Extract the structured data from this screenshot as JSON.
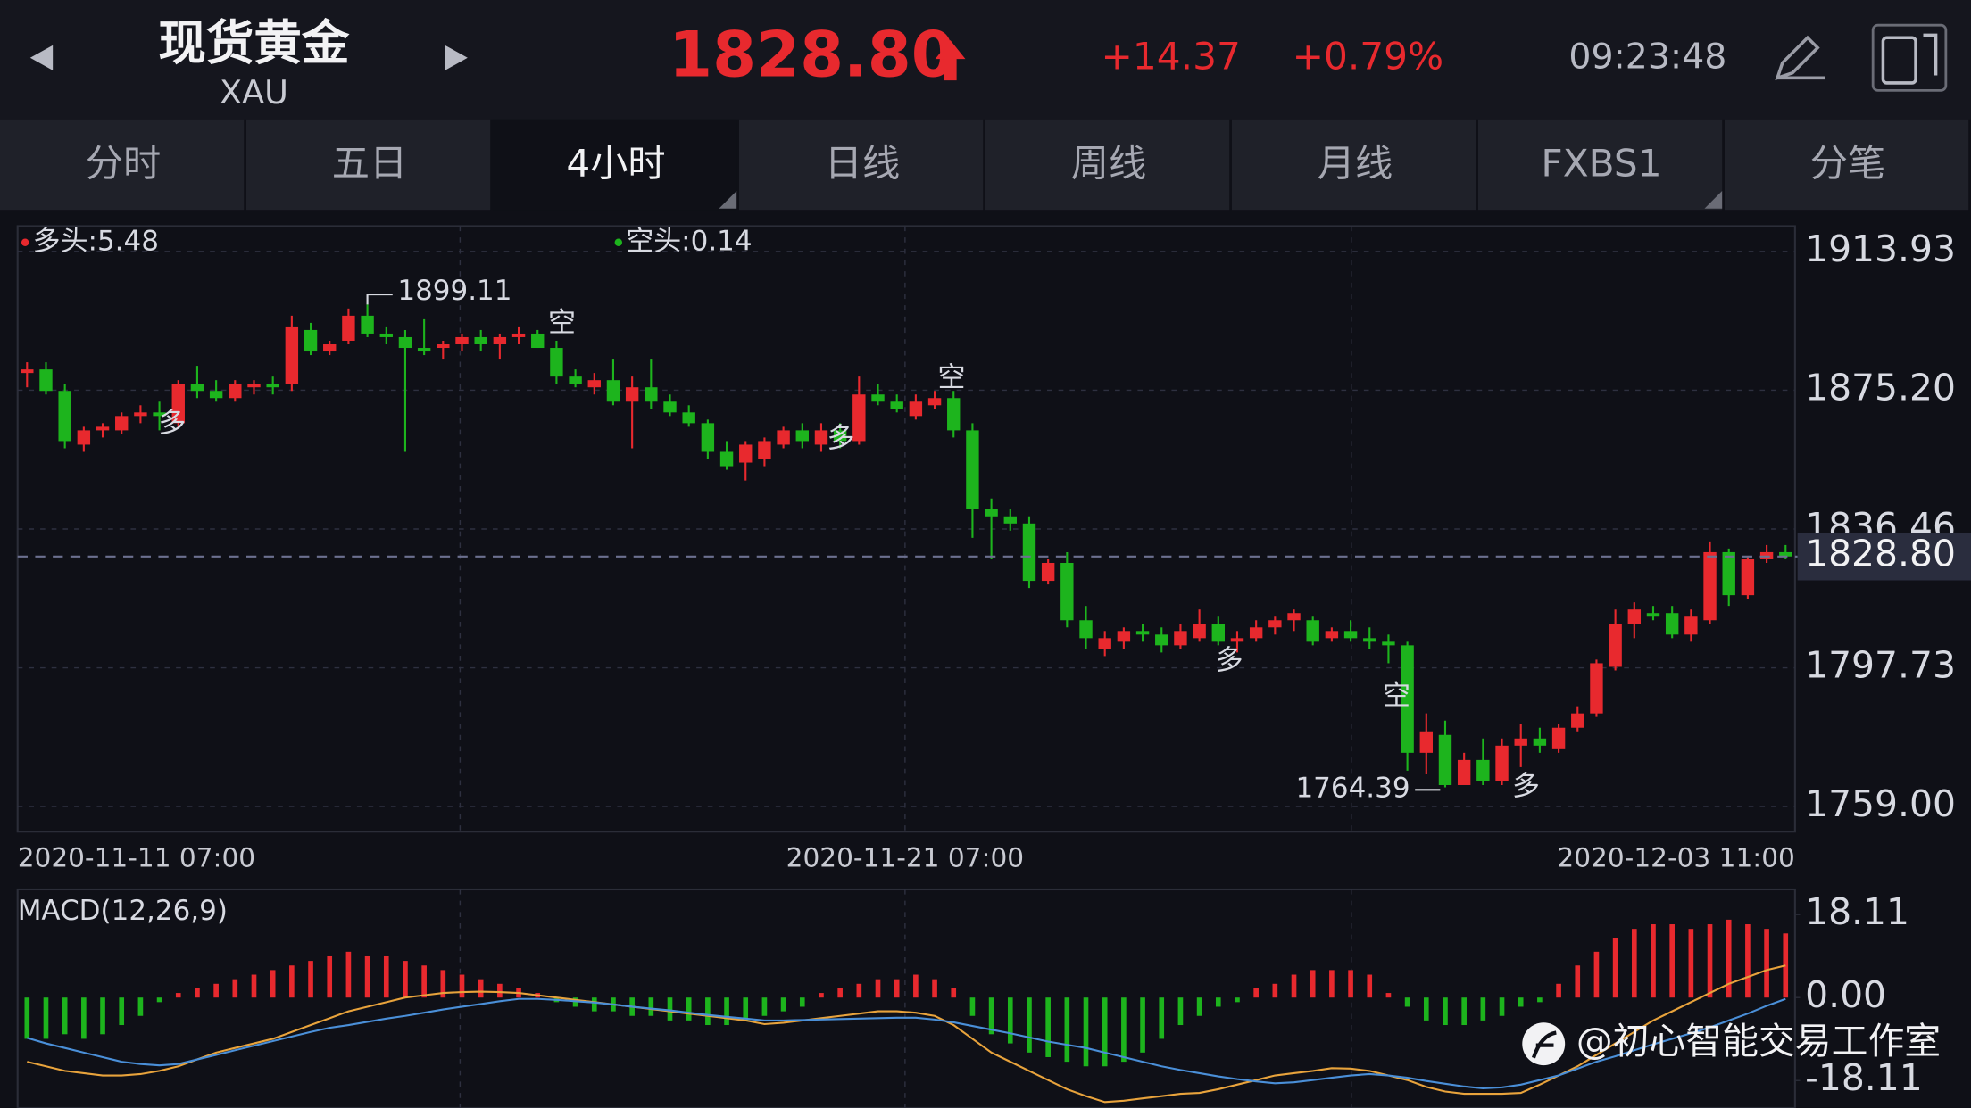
{
  "header": {
    "title": "现货黄金",
    "symbol": "XAU",
    "price": "1828.80",
    "change": "+14.37",
    "change_pct": "+0.79%",
    "time": "09:23:48"
  },
  "tabs": [
    "分时",
    "五日",
    "4小时",
    "日线",
    "周线",
    "月线",
    "FXBS1",
    "分笔"
  ],
  "active_tab": 2,
  "watermark": "@初心智能交易工作室",
  "chart_data": {
    "type": "candlestick",
    "up_color": "#e8292e",
    "down_color": "#1db41d",
    "legend": [
      {
        "name": "多头:5.48",
        "color": "#e8292e"
      },
      {
        "name": "空头:0.14",
        "color": "#1db41d"
      }
    ],
    "x_labels": [
      "2020-11-11 07:00",
      "2020-11-21 07:00",
      "2020-12-03 11:00"
    ],
    "signals": [
      "多",
      "空",
      "多",
      "空",
      "多",
      "空",
      "多"
    ],
    "ylim": [
      1752,
      1921
    ],
    "yticks": [
      {
        "value": 1759.0,
        "label": "1759.00"
      },
      {
        "value": 1797.73,
        "label": "1797.73"
      },
      {
        "value": 1836.46,
        "label": "1836.46"
      },
      {
        "value": 1875.2,
        "label": "1875.20"
      },
      {
        "value": 1913.93,
        "label": "1913.93"
      }
    ],
    "grid": true,
    "last_price": {
      "value": 1828.8,
      "label": "1828.80"
    },
    "open": [
      1880,
      1881,
      1875,
      1860,
      1864,
      1864,
      1868,
      1869,
      1866,
      1877,
      1875,
      1873,
      1876,
      1877,
      1877,
      1892,
      1886,
      1889,
      1896,
      1891,
      1890,
      1887,
      1887,
      1888,
      1890,
      1888,
      1890,
      1891,
      1887,
      1879,
      1876,
      1878,
      1872,
      1876,
      1872,
      1869,
      1866,
      1858,
      1855,
      1856,
      1860,
      1864,
      1860,
      1864,
      1861,
      1874,
      1872,
      1868,
      1871,
      1873,
      1864,
      1842,
      1840,
      1838,
      1822,
      1827,
      1811,
      1803,
      1805,
      1808,
      1807,
      1804,
      1806,
      1810,
      1805,
      1806,
      1809,
      1811,
      1811,
      1806,
      1808,
      1806,
      1805,
      1804,
      1774,
      1779,
      1765,
      1772,
      1766,
      1776,
      1778,
      1775,
      1781,
      1785,
      1798,
      1810,
      1813,
      1813,
      1807,
      1811,
      1830,
      1818,
      1828,
      1830
    ],
    "high": [
      1883,
      1883,
      1877,
      1865,
      1866,
      1869,
      1871,
      1872,
      1878,
      1882,
      1878,
      1878,
      1878,
      1879,
      1896,
      1894,
      1889,
      1898,
      1899.11,
      1893,
      1892,
      1895,
      1889,
      1891,
      1892,
      1891,
      1893,
      1892,
      1889,
      1881,
      1880,
      1884,
      1879,
      1884,
      1874,
      1871,
      1867,
      1861,
      1861,
      1862,
      1865,
      1866,
      1866,
      1866,
      1879,
      1877,
      1874,
      1874,
      1875,
      1875,
      1866,
      1845,
      1842,
      1840,
      1828,
      1830,
      1815,
      1808,
      1809,
      1810,
      1809,
      1810,
      1814,
      1812,
      1808,
      1811,
      1812,
      1814,
      1812,
      1809,
      1811,
      1809,
      1807,
      1805,
      1785,
      1783,
      1774,
      1778,
      1778,
      1782,
      1781,
      1782,
      1787,
      1800,
      1814,
      1816,
      1815,
      1815,
      1814,
      1833,
      1831,
      1829,
      1832,
      1832
    ],
    "low": [
      1876,
      1874,
      1859,
      1858,
      1862,
      1863,
      1866,
      1864,
      1865,
      1873,
      1872,
      1872,
      1874,
      1874,
      1875,
      1885,
      1885,
      1888,
      1890,
      1888,
      1858,
      1885,
      1884,
      1886,
      1886,
      1884,
      1888,
      1887,
      1877,
      1876,
      1874,
      1871,
      1859,
      1870,
      1868,
      1865,
      1856,
      1853,
      1850,
      1854,
      1859,
      1859,
      1858,
      1859,
      1860,
      1871,
      1869,
      1867,
      1870,
      1862,
      1834,
      1828,
      1836,
      1820,
      1821,
      1809,
      1803,
      1801,
      1803,
      1805,
      1802,
      1803,
      1805,
      1804,
      1802,
      1805,
      1807,
      1808,
      1804,
      1805,
      1805,
      1803,
      1799,
      1769,
      1768,
      1764.39,
      1766,
      1765,
      1765,
      1770,
      1774,
      1774,
      1780,
      1784,
      1797,
      1806,
      1811,
      1806,
      1805,
      1810,
      1815,
      1817,
      1827,
      1828
    ],
    "close": [
      1881,
      1875,
      1861,
      1864,
      1865,
      1868,
      1869,
      1868,
      1877,
      1875,
      1873,
      1877,
      1877,
      1876,
      1893,
      1886,
      1888,
      1896,
      1891,
      1890,
      1887,
      1886,
      1888,
      1890,
      1888,
      1890,
      1891,
      1887,
      1879,
      1877,
      1878,
      1872,
      1876,
      1872,
      1869,
      1866,
      1858,
      1854,
      1860,
      1861,
      1864,
      1861,
      1864,
      1861,
      1874,
      1872,
      1870,
      1872,
      1873,
      1864,
      1842,
      1840,
      1838,
      1822,
      1827,
      1811,
      1806,
      1806,
      1808,
      1807,
      1804,
      1808,
      1810,
      1805,
      1806,
      1809,
      1811,
      1813,
      1805,
      1808,
      1806,
      1805,
      1804,
      1774,
      1780,
      1765,
      1772,
      1766,
      1776,
      1778,
      1776,
      1781,
      1785,
      1799,
      1810,
      1814,
      1812,
      1807,
      1812,
      1830,
      1818,
      1828,
      1830,
      1828.8
    ],
    "macd": {
      "title": "MACD(12,26,9)",
      "ylim": [
        -24.1,
        23.6
      ],
      "yticks": [
        18.11,
        {
          "value": 0,
          "label": "0.00"
        },
        -18.11
      ],
      "dif_color": "#e8a33c",
      "dea_color": "#4a8fd8",
      "hist": [
        -9,
        -9,
        -8,
        -9,
        -8,
        -6,
        -4,
        -1,
        1,
        2,
        3,
        4,
        5,
        6,
        7,
        8,
        9,
        10,
        9,
        9,
        8,
        7,
        6,
        5,
        4,
        3,
        2,
        1,
        -1,
        -2,
        -3,
        -3,
        -4,
        -4,
        -5,
        -5,
        -6,
        -6,
        -5,
        -4,
        -3,
        -2,
        1,
        2,
        3,
        4,
        4,
        5,
        4,
        2,
        -4,
        -8,
        -10,
        -12,
        -13,
        -14,
        -15,
        -15,
        -14,
        -12,
        -9,
        -6,
        -4,
        -2,
        -1,
        2,
        3,
        5,
        6,
        6,
        6,
        5,
        1,
        -2,
        -5,
        -6,
        -6,
        -5,
        -4,
        -2,
        -1,
        3,
        7,
        10,
        13,
        15,
        16,
        16,
        15,
        16,
        17,
        16,
        15,
        14
      ],
      "dif": [
        -14,
        -15,
        -16,
        -16.5,
        -17,
        -17,
        -16.7,
        -16,
        -15,
        -13.5,
        -12,
        -11,
        -10,
        -9,
        -7.5,
        -6,
        -4.5,
        -3,
        -2,
        -1,
        0,
        0.5,
        1,
        1.2,
        1.3,
        1.2,
        1,
        0.5,
        0,
        -0.5,
        -1,
        -1.5,
        -2,
        -2.5,
        -3,
        -3.5,
        -4,
        -4.5,
        -5,
        -5.8,
        -5.5,
        -5,
        -4.5,
        -4,
        -3.5,
        -3,
        -3,
        -3.3,
        -4,
        -6,
        -9,
        -12,
        -14,
        -16,
        -18,
        -20,
        -21.5,
        -22.8,
        -22.5,
        -22,
        -21.5,
        -21,
        -20.8,
        -20,
        -19,
        -18,
        -17,
        -16.5,
        -16,
        -15.4,
        -15.5,
        -16,
        -17,
        -18,
        -19.5,
        -20.5,
        -21,
        -21,
        -21,
        -20.8,
        -19,
        -17,
        -15,
        -12.5,
        -10,
        -7.5,
        -5,
        -3,
        -1,
        1,
        3,
        4.5,
        6,
        7
      ],
      "dea": [
        -8.8,
        -10,
        -11,
        -12,
        -13,
        -14,
        -14.5,
        -14.8,
        -14.5,
        -13.5,
        -12.5,
        -11.5,
        -10.5,
        -9.5,
        -8.5,
        -7.5,
        -6.6,
        -6,
        -5.3,
        -4.6,
        -4,
        -3.3,
        -2.6,
        -2,
        -1.4,
        -0.8,
        -0.3,
        -0.3,
        -0.5,
        -0.8,
        -1.1,
        -1.5,
        -2,
        -2.4,
        -2.8,
        -3.3,
        -3.8,
        -4.2,
        -4.6,
        -5,
        -5,
        -4.9,
        -4.8,
        -4.7,
        -4.6,
        -4.5,
        -4.4,
        -4.4,
        -4.8,
        -5.4,
        -6.2,
        -7,
        -7.8,
        -8.7,
        -9.6,
        -10.3,
        -11,
        -12,
        -13,
        -14,
        -15,
        -15.8,
        -16.5,
        -17.2,
        -17.8,
        -18.3,
        -18.7,
        -18.5,
        -18,
        -17.5,
        -17,
        -16.7,
        -17,
        -17.5,
        -18.2,
        -18.8,
        -19.4,
        -19.8,
        -19.6,
        -19,
        -18,
        -17,
        -15.5,
        -14,
        -12.8,
        -11.5,
        -10.2,
        -9,
        -7.8,
        -6.5,
        -5,
        -3.5,
        -1.8,
        -0.3
      ]
    }
  }
}
